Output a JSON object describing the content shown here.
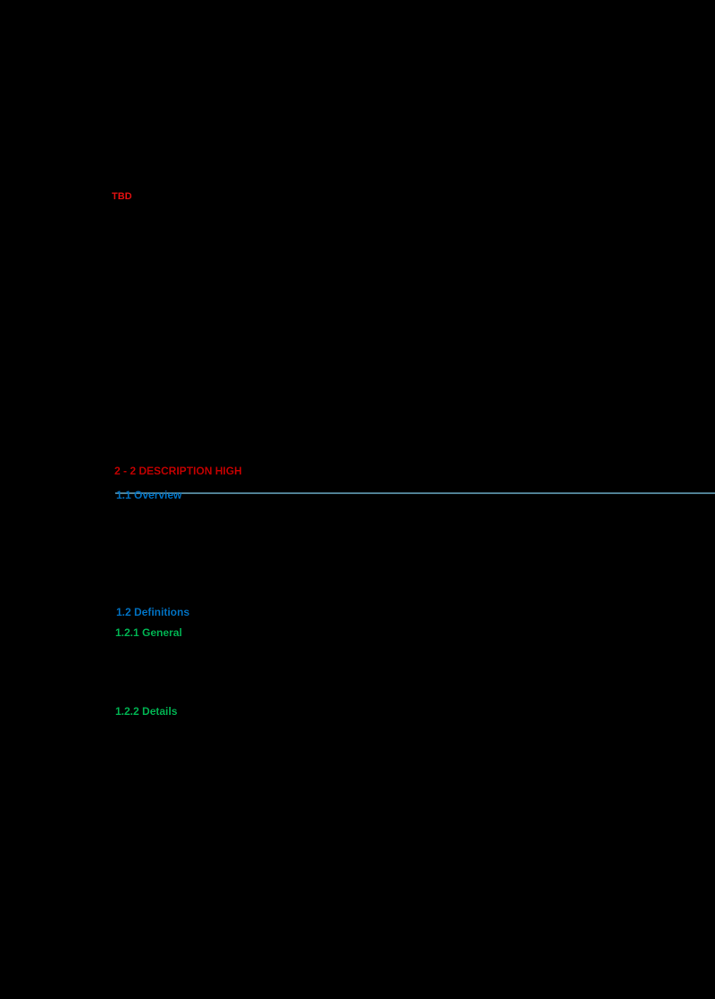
{
  "page": {
    "background_color": "#000000"
  },
  "doc": {
    "top_label": {
      "text": "TBD",
      "color": "#e01010"
    },
    "rule": {
      "color": "#4f7f93"
    },
    "headings": [
      {
        "text": "2 - 2 DESCRIPTION HIGH",
        "color": "#c00000",
        "level": "section"
      },
      {
        "text": "1.1 Overview",
        "color": "#0070c0",
        "level": "subsection"
      },
      {
        "text": "1.2 Definitions",
        "color": "#0070c0",
        "level": "subsection"
      },
      {
        "text": "1.2.1 General",
        "color": "#00b050",
        "level": "subsubsection"
      },
      {
        "text": "1.2.2 Details",
        "color": "#00b050",
        "level": "subsubsection"
      }
    ]
  }
}
